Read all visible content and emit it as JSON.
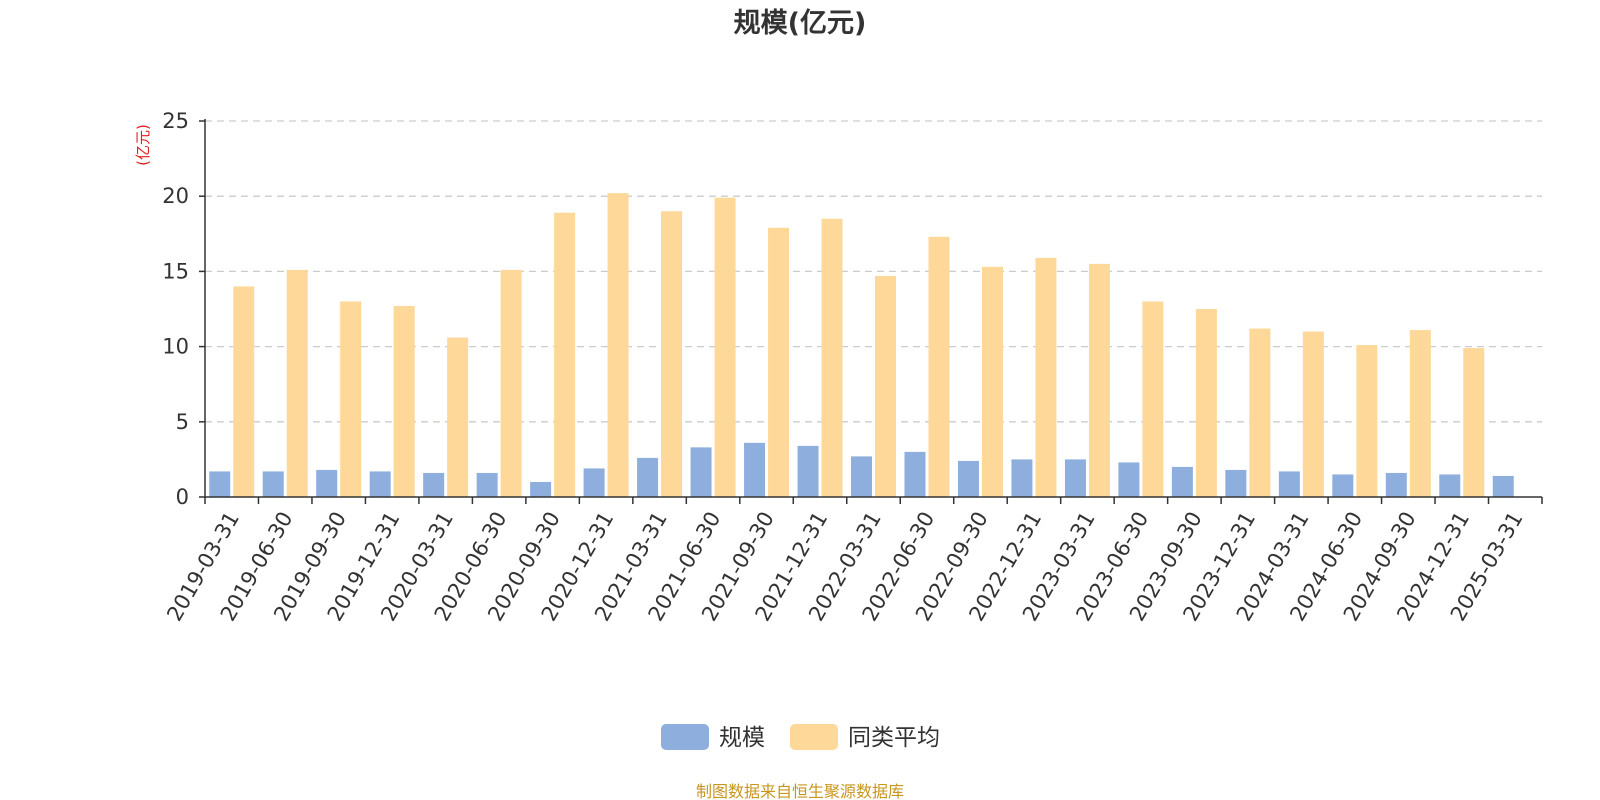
{
  "chart_data": {
    "type": "bar",
    "title": "规模(亿元)",
    "y_unit_label": "(亿元)",
    "ylim": [
      0,
      25
    ],
    "yticks": [
      0,
      5,
      10,
      15,
      20,
      25
    ],
    "grid": "horizontal dashed",
    "legend_position": "bottom-center",
    "categories": [
      "2019-03-31",
      "2019-06-30",
      "2019-09-30",
      "2019-12-31",
      "2020-03-31",
      "2020-06-30",
      "2020-09-30",
      "2020-12-31",
      "2021-03-31",
      "2021-06-30",
      "2021-09-30",
      "2021-12-31",
      "2022-03-31",
      "2022-06-30",
      "2022-09-30",
      "2022-12-31",
      "2023-03-31",
      "2023-06-30",
      "2023-09-30",
      "2023-12-31",
      "2024-03-31",
      "2024-06-30",
      "2024-09-30",
      "2024-12-31",
      "2025-03-31"
    ],
    "series": [
      {
        "name": "规模",
        "color": "#8eaedd",
        "values": [
          1.7,
          1.7,
          1.8,
          1.7,
          1.6,
          1.6,
          1.0,
          1.9,
          2.6,
          3.3,
          3.6,
          3.4,
          2.7,
          3.0,
          2.4,
          2.5,
          2.5,
          2.3,
          2.0,
          1.8,
          1.7,
          1.5,
          1.6,
          1.5,
          1.4
        ]
      },
      {
        "name": "同类平均",
        "color": "#fdd899",
        "values": [
          14.0,
          15.1,
          13.0,
          12.7,
          10.6,
          15.1,
          18.9,
          20.2,
          19.0,
          19.9,
          17.9,
          18.5,
          14.7,
          17.3,
          15.3,
          15.9,
          15.5,
          13.0,
          12.5,
          11.2,
          11.0,
          10.1,
          11.1,
          9.9,
          null
        ]
      }
    ]
  },
  "colors": {
    "unit_label": "#e02020",
    "source_text": "#c8961e",
    "axis": "#333333",
    "grid": "#cccccc"
  },
  "source_note": "制图数据来自恒生聚源数据库"
}
